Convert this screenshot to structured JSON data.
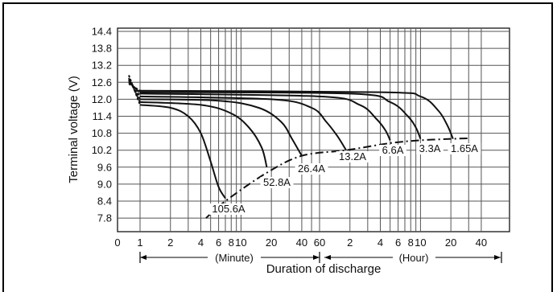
{
  "chart_data": {
    "type": "line",
    "ylabel": "Terminal voltage (V)",
    "xlabel": "Duration of discharge",
    "ylim": [
      7.4,
      14.4
    ],
    "y_ticks": [
      "14.4",
      "13.8",
      "13.2",
      "12.6",
      "12.0",
      "11.4",
      "10.8",
      "10.2",
      "9.6",
      "9.0",
      "8.4",
      "7.8"
    ],
    "x_ticks_minute": [
      "0",
      "1",
      "2",
      "4",
      "6",
      "8",
      "10",
      "20",
      "40",
      "60"
    ],
    "x_ticks_hour": [
      "2",
      "4",
      "6",
      "8",
      "10",
      "20",
      "40"
    ],
    "unit_minute": "(Minute)",
    "unit_hour": "(Hour)",
    "grid": true,
    "series": [
      {
        "name": "105.6A",
        "points": [
          [
            0.5,
            12.85
          ],
          [
            1,
            11.8
          ],
          [
            2,
            11.7
          ],
          [
            3,
            11.4
          ],
          [
            4,
            10.8
          ],
          [
            5,
            9.8
          ],
          [
            6,
            8.9
          ],
          [
            7,
            8.5
          ]
        ]
      },
      {
        "name": "52.8A",
        "points": [
          [
            0.5,
            12.75
          ],
          [
            1,
            11.9
          ],
          [
            4,
            11.8
          ],
          [
            8,
            11.5
          ],
          [
            12,
            11.0
          ],
          [
            16,
            10.3
          ],
          [
            18,
            9.6
          ]
        ]
      },
      {
        "name": "26.4A",
        "points": [
          [
            0.5,
            12.7
          ],
          [
            1,
            12.0
          ],
          [
            6,
            11.95
          ],
          [
            15,
            11.7
          ],
          [
            25,
            11.2
          ],
          [
            32,
            10.6
          ],
          [
            40,
            10.0
          ]
        ]
      },
      {
        "name": "13.2A",
        "points": [
          [
            0.5,
            12.7
          ],
          [
            1,
            12.1
          ],
          [
            20,
            12.0
          ],
          [
            50,
            11.7
          ],
          [
            70,
            11.2
          ],
          [
            90,
            10.7
          ],
          [
            110,
            10.2
          ]
        ]
      },
      {
        "name": "6.6A",
        "points": [
          [
            0.5,
            12.65
          ],
          [
            1,
            12.2
          ],
          [
            60,
            12.1
          ],
          [
            150,
            11.8
          ],
          [
            220,
            11.3
          ],
          [
            270,
            10.9
          ],
          [
            300,
            10.55
          ]
        ]
      },
      {
        "name": "3.3A",
        "points": [
          [
            0.5,
            12.6
          ],
          [
            1,
            12.25
          ],
          [
            120,
            12.2
          ],
          [
            300,
            11.9
          ],
          [
            450,
            11.4
          ],
          [
            540,
            11.0
          ],
          [
            600,
            10.6
          ]
        ]
      },
      {
        "name": "1.65A",
        "points": [
          [
            0.5,
            12.55
          ],
          [
            1,
            12.3
          ],
          [
            240,
            12.25
          ],
          [
            600,
            12.1
          ],
          [
            900,
            11.6
          ],
          [
            1100,
            11.1
          ],
          [
            1260,
            10.6
          ]
        ]
      }
    ],
    "cutoff_line": [
      [
        4.5,
        7.8
      ],
      [
        7,
        8.4
      ],
      [
        18,
        9.4
      ],
      [
        40,
        10.0
      ],
      [
        110,
        10.2
      ],
      [
        300,
        10.45
      ],
      [
        600,
        10.55
      ],
      [
        1260,
        10.6
      ],
      [
        1800,
        10.62
      ]
    ]
  }
}
